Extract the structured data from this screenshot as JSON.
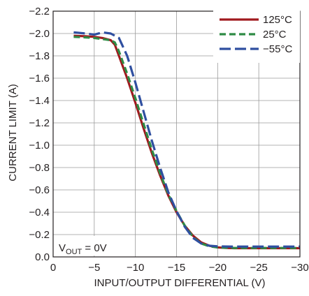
{
  "chart_data": {
    "type": "line",
    "title": "",
    "xlabel": "INPUT/OUTPUT DIFFERENTIAL (V)",
    "ylabel": "CURRENT LIMIT (A)",
    "xlim": [
      0,
      -30
    ],
    "ylim": [
      0,
      -2.2
    ],
    "x_ticks": [
      0,
      -5,
      -10,
      -15,
      -20,
      -25,
      -30
    ],
    "x_tick_labels": [
      "0",
      "−5",
      "−10",
      "−15",
      "−20",
      "−25",
      "−30"
    ],
    "y_ticks": [
      0,
      -0.2,
      -0.4,
      -0.6,
      -0.8,
      -1.0,
      -1.2,
      -1.4,
      -1.6,
      -1.8,
      -2.0,
      -2.2
    ],
    "y_tick_labels": [
      "0.0",
      "−0.2",
      "−0.4",
      "−0.6",
      "−0.8",
      "−1.0",
      "−1.2",
      "−1.4",
      "−1.6",
      "−1.8",
      "−2.0",
      "−2.2"
    ],
    "grid": true,
    "legend_position": "top-right",
    "annotation": {
      "prefix": "V",
      "subscript": "OUT",
      "suffix": " = 0V"
    },
    "series": [
      {
        "name": "125°C",
        "color": "#a0191e",
        "style": "solid",
        "points": [
          [
            -2.5,
            -1.98
          ],
          [
            -4,
            -1.975
          ],
          [
            -5,
            -1.97
          ],
          [
            -6,
            -1.96
          ],
          [
            -7,
            -1.94
          ],
          [
            -7.5,
            -1.9
          ],
          [
            -8,
            -1.8
          ],
          [
            -9,
            -1.6
          ],
          [
            -10,
            -1.38
          ],
          [
            -11,
            -1.15
          ],
          [
            -12,
            -0.93
          ],
          [
            -13,
            -0.73
          ],
          [
            -14,
            -0.55
          ],
          [
            -15,
            -0.4
          ],
          [
            -16,
            -0.28
          ],
          [
            -17,
            -0.19
          ],
          [
            -18,
            -0.13
          ],
          [
            -19,
            -0.1
          ],
          [
            -20,
            -0.085
          ],
          [
            -21,
            -0.08
          ],
          [
            -22,
            -0.078
          ],
          [
            -25,
            -0.078
          ],
          [
            -28,
            -0.078
          ],
          [
            -30,
            -0.078
          ]
        ]
      },
      {
        "name": "25°C",
        "color": "#2e8b45",
        "style": "dashed",
        "points": [
          [
            -2.5,
            -1.97
          ],
          [
            -4,
            -1.965
          ],
          [
            -5,
            -1.96
          ],
          [
            -6,
            -1.95
          ],
          [
            -7,
            -1.94
          ],
          [
            -7.5,
            -1.92
          ],
          [
            -8,
            -1.84
          ],
          [
            -9,
            -1.64
          ],
          [
            -10,
            -1.42
          ],
          [
            -11,
            -1.19
          ],
          [
            -12,
            -0.96
          ],
          [
            -13,
            -0.75
          ],
          [
            -14,
            -0.56
          ],
          [
            -15,
            -0.41
          ],
          [
            -16,
            -0.28
          ],
          [
            -17,
            -0.18
          ],
          [
            -18,
            -0.12
          ],
          [
            -19,
            -0.095
          ],
          [
            -20,
            -0.085
          ],
          [
            -21,
            -0.082
          ],
          [
            -22,
            -0.08
          ],
          [
            -25,
            -0.08
          ],
          [
            -28,
            -0.08
          ],
          [
            -30,
            -0.08
          ]
        ]
      },
      {
        "name": "−55°C",
        "color": "#2f4fa0",
        "style": "longdash",
        "points": [
          [
            -2.5,
            -2.01
          ],
          [
            -4,
            -2.0
          ],
          [
            -5,
            -1.99
          ],
          [
            -6,
            -2.01
          ],
          [
            -7,
            -2.0
          ],
          [
            -8,
            -1.96
          ],
          [
            -9,
            -1.8
          ],
          [
            -10,
            -1.56
          ],
          [
            -11,
            -1.3
          ],
          [
            -12,
            -1.04
          ],
          [
            -13,
            -0.8
          ],
          [
            -14,
            -0.58
          ],
          [
            -15,
            -0.41
          ],
          [
            -16,
            -0.27
          ],
          [
            -17,
            -0.17
          ],
          [
            -18,
            -0.12
          ],
          [
            -19,
            -0.1
          ],
          [
            -20,
            -0.095
          ],
          [
            -21,
            -0.093
          ],
          [
            -22,
            -0.092
          ],
          [
            -25,
            -0.092
          ],
          [
            -28,
            -0.092
          ],
          [
            -30,
            -0.092
          ]
        ]
      }
    ]
  }
}
